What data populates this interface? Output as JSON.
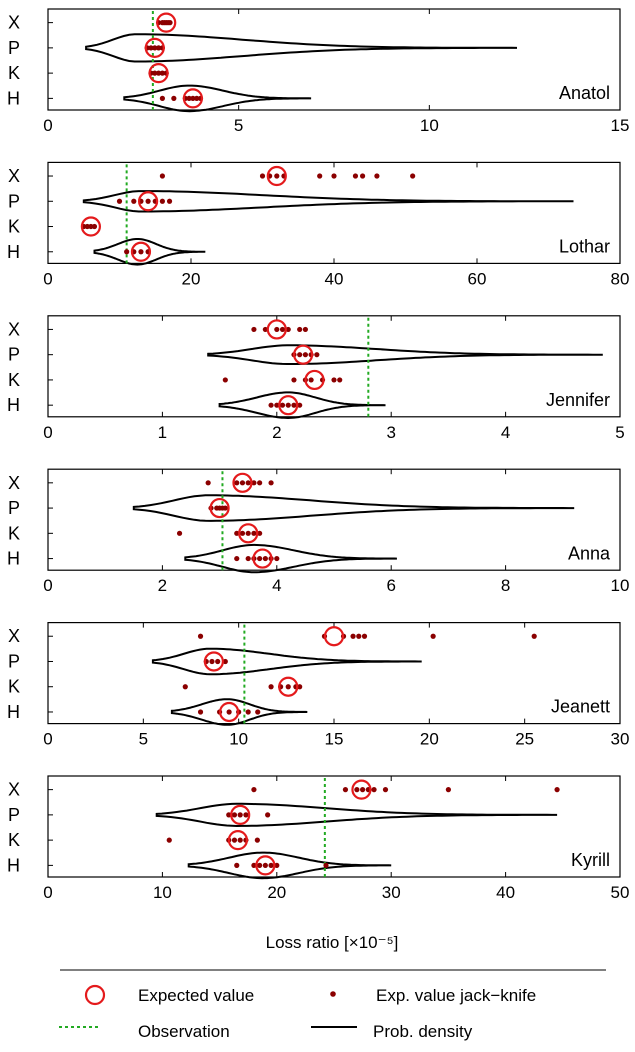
{
  "colors": {
    "density": "#000000",
    "expected": "#e41a1c",
    "jackknife": "#8b0000",
    "observation": "#22aa22",
    "axis": "#000000"
  },
  "xlabel": "Loss ratio [×10⁻⁵]",
  "legend": {
    "placement": "bottom",
    "items": [
      {
        "key": "expected",
        "label": "Expected value"
      },
      {
        "key": "jackknife",
        "label": "Exp. value jack−knife"
      },
      {
        "key": "observation",
        "label": "Observation"
      },
      {
        "key": "density",
        "label": "Prob. density"
      }
    ]
  },
  "chart_data": [
    {
      "type": "violin",
      "name": "Anatol",
      "categories": [
        "X",
        "P",
        "K",
        "H"
      ],
      "xlim": [
        0,
        15
      ],
      "ticks": [
        0,
        5,
        10,
        15
      ],
      "tick_labels": [
        "0",
        "5",
        "10",
        "15"
      ],
      "observation": 2.75,
      "series": [
        {
          "cat": "X",
          "expected": 3.1,
          "jackknife": [
            2.9,
            3.0,
            3.05,
            3.1,
            3.15,
            3.2
          ],
          "density": null
        },
        {
          "cat": "P",
          "expected": 2.8,
          "jackknife": [
            2.6,
            2.7,
            2.8,
            2.9,
            3.0
          ],
          "density": {
            "min": 1.0,
            "max": 12.3,
            "mode": 2.3,
            "width": 0.8
          }
        },
        {
          "cat": "K",
          "expected": 2.9,
          "jackknife": [
            2.7,
            2.8,
            2.9,
            3.0,
            3.1
          ],
          "density": null
        },
        {
          "cat": "H",
          "expected": 3.8,
          "jackknife": [
            3.0,
            3.3,
            3.6,
            3.7,
            3.8,
            3.9,
            4.0
          ],
          "density": {
            "min": 2.0,
            "max": 6.9,
            "mode": 3.7,
            "width": 0.75
          }
        }
      ]
    },
    {
      "type": "violin",
      "name": "Lothar",
      "categories": [
        "X",
        "P",
        "K",
        "H"
      ],
      "xlim": [
        0,
        80
      ],
      "ticks": [
        0,
        20,
        40,
        60,
        80
      ],
      "tick_labels": [
        "0",
        "20",
        "40",
        "60",
        "80"
      ],
      "observation": 11,
      "series": [
        {
          "cat": "X",
          "expected": 32,
          "jackknife": [
            16,
            30,
            31,
            32,
            33,
            38,
            40,
            43,
            44,
            46,
            51
          ],
          "density": null
        },
        {
          "cat": "P",
          "expected": 14,
          "jackknife": [
            10,
            12,
            13,
            14,
            15,
            16,
            17
          ],
          "density": {
            "min": 5,
            "max": 73.5,
            "mode": 13,
            "width": 0.6
          }
        },
        {
          "cat": "K",
          "expected": 6,
          "jackknife": [
            5,
            5.5,
            6,
            6.5
          ],
          "density": null
        },
        {
          "cat": "H",
          "expected": 13,
          "jackknife": [
            11,
            12,
            13,
            14
          ],
          "density": {
            "min": 6.5,
            "max": 22,
            "mode": 12.5,
            "width": 0.75
          }
        }
      ]
    },
    {
      "type": "violin",
      "name": "Jennifer",
      "categories": [
        "X",
        "P",
        "K",
        "H"
      ],
      "xlim": [
        0,
        5
      ],
      "ticks": [
        0,
        1,
        2,
        3,
        4,
        5
      ],
      "tick_labels": [
        "0",
        "1",
        "2",
        "3",
        "4",
        "5"
      ],
      "observation": 2.8,
      "series": [
        {
          "cat": "X",
          "expected": 2.0,
          "jackknife": [
            1.8,
            1.9,
            2.0,
            2.05,
            2.1,
            2.2,
            2.25
          ],
          "density": null
        },
        {
          "cat": "P",
          "expected": 2.23,
          "jackknife": [
            2.15,
            2.2,
            2.25,
            2.3,
            2.35
          ],
          "density": {
            "min": 1.4,
            "max": 4.85,
            "mode": 2.1,
            "width": 0.55
          }
        },
        {
          "cat": "K",
          "expected": 2.33,
          "jackknife": [
            1.55,
            2.15,
            2.25,
            2.3,
            2.4,
            2.5,
            2.55
          ],
          "density": null
        },
        {
          "cat": "H",
          "expected": 2.1,
          "jackknife": [
            1.95,
            2.0,
            2.05,
            2.1,
            2.15,
            2.2
          ],
          "density": {
            "min": 1.5,
            "max": 2.95,
            "mode": 2.1,
            "width": 0.75
          }
        }
      ]
    },
    {
      "type": "violin",
      "name": "Anna",
      "categories": [
        "X",
        "P",
        "K",
        "H"
      ],
      "xlim": [
        0,
        10
      ],
      "ticks": [
        0,
        2,
        4,
        6,
        8,
        10
      ],
      "tick_labels": [
        "0",
        "2",
        "4",
        "6",
        "8",
        "10"
      ],
      "observation": 3.05,
      "series": [
        {
          "cat": "X",
          "expected": 3.4,
          "jackknife": [
            2.8,
            3.3,
            3.4,
            3.5,
            3.6,
            3.7,
            3.9
          ],
          "density": null
        },
        {
          "cat": "P",
          "expected": 3.0,
          "jackknife": [
            2.85,
            2.95,
            3.0,
            3.05,
            3.1
          ],
          "density": {
            "min": 1.5,
            "max": 9.2,
            "mode": 2.8,
            "width": 0.75
          }
        },
        {
          "cat": "K",
          "expected": 3.5,
          "jackknife": [
            2.3,
            3.3,
            3.4,
            3.5,
            3.6,
            3.7
          ],
          "density": null
        },
        {
          "cat": "H",
          "expected": 3.75,
          "jackknife": [
            3.3,
            3.5,
            3.6,
            3.7,
            3.8,
            3.9,
            4.0
          ],
          "density": {
            "min": 2.4,
            "max": 6.1,
            "mode": 3.6,
            "width": 0.8
          }
        }
      ]
    },
    {
      "type": "violin",
      "name": "Jeanett",
      "categories": [
        "X",
        "P",
        "K",
        "H"
      ],
      "xlim": [
        0,
        30
      ],
      "ticks": [
        0,
        5,
        10,
        15,
        20,
        25,
        30
      ],
      "tick_labels": [
        "0",
        "5",
        "10",
        "15",
        "20",
        "25",
        "30"
      ],
      "observation": 10.3,
      "series": [
        {
          "cat": "X",
          "expected": 15.0,
          "jackknife": [
            8,
            14.5,
            15.5,
            16.0,
            16.3,
            16.6,
            20.2,
            25.5
          ],
          "density": null
        },
        {
          "cat": "P",
          "expected": 8.7,
          "jackknife": [
            8.3,
            8.6,
            8.9,
            9.3
          ],
          "density": {
            "min": 5.5,
            "max": 19.6,
            "mode": 8.5,
            "width": 0.75
          }
        },
        {
          "cat": "K",
          "expected": 12.6,
          "jackknife": [
            7.2,
            11.7,
            12.2,
            12.6,
            13.0,
            13.2
          ],
          "density": null
        },
        {
          "cat": "H",
          "expected": 9.5,
          "jackknife": [
            8.0,
            9.0,
            9.5,
            10.0,
            10.5,
            11.0
          ],
          "density": {
            "min": 6.5,
            "max": 13.6,
            "mode": 9.4,
            "width": 0.75
          }
        }
      ]
    },
    {
      "type": "violin",
      "name": "Kyrill",
      "categories": [
        "X",
        "P",
        "K",
        "H"
      ],
      "xlim": [
        0,
        50
      ],
      "ticks": [
        0,
        10,
        20,
        30,
        40,
        50
      ],
      "tick_labels": [
        "0",
        "10",
        "20",
        "30",
        "40",
        "50"
      ],
      "observation": 24.2,
      "series": [
        {
          "cat": "X",
          "expected": 27.4,
          "jackknife": [
            18,
            26,
            27,
            27.5,
            28,
            28.5,
            29.5,
            35,
            44.5
          ],
          "density": null
        },
        {
          "cat": "P",
          "expected": 16.8,
          "jackknife": [
            15.8,
            16.3,
            16.8,
            17.3,
            19.2
          ],
          "density": {
            "min": 9.5,
            "max": 44.5,
            "mode": 16.5,
            "width": 0.65
          }
        },
        {
          "cat": "K",
          "expected": 16.6,
          "jackknife": [
            10.6,
            15.8,
            16.3,
            16.8,
            17.3,
            18.3
          ],
          "density": null
        },
        {
          "cat": "H",
          "expected": 19.0,
          "jackknife": [
            16.5,
            18.0,
            18.5,
            19.0,
            19.5,
            20.0,
            24.3
          ],
          "density": {
            "min": 12.3,
            "max": 30.0,
            "mode": 18.8,
            "width": 0.75
          }
        }
      ]
    }
  ]
}
